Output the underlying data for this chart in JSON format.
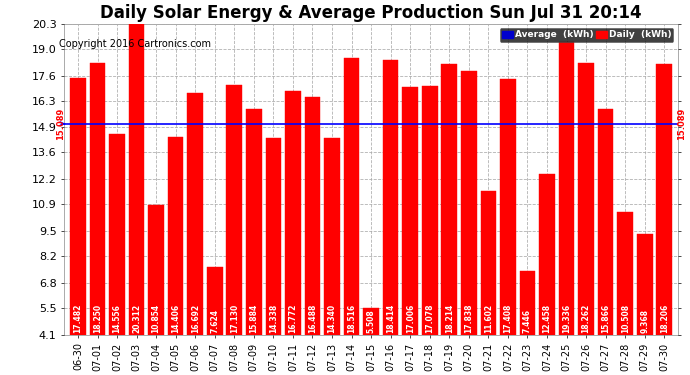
{
  "title": "Daily Solar Energy & Average Production Sun Jul 31 20:14",
  "copyright": "Copyright 2016 Cartronics.com",
  "average_label": "15.089",
  "average_value": 15.089,
  "bar_color": "#ff0000",
  "average_line_color": "#0000ff",
  "categories": [
    "06-30",
    "07-01",
    "07-02",
    "07-03",
    "07-04",
    "07-05",
    "07-06",
    "07-07",
    "07-08",
    "07-09",
    "07-10",
    "07-11",
    "07-12",
    "07-13",
    "07-14",
    "07-15",
    "07-16",
    "07-17",
    "07-18",
    "07-19",
    "07-20",
    "07-21",
    "07-22",
    "07-23",
    "07-24",
    "07-25",
    "07-26",
    "07-27",
    "07-28",
    "07-29",
    "07-30"
  ],
  "values": [
    17.482,
    18.25,
    14.556,
    20.312,
    10.854,
    14.406,
    16.692,
    7.624,
    17.13,
    15.884,
    14.338,
    16.772,
    16.488,
    14.34,
    18.516,
    5.508,
    18.414,
    17.006,
    17.078,
    18.214,
    17.838,
    11.602,
    17.408,
    7.446,
    12.458,
    19.336,
    18.262,
    15.866,
    10.508,
    9.368,
    18.206
  ],
  "ylim_min": 4.1,
  "ylim_max": 20.3,
  "yticks": [
    4.1,
    5.5,
    6.8,
    8.2,
    9.5,
    10.9,
    12.2,
    13.6,
    14.9,
    16.3,
    17.6,
    19.0,
    20.3
  ],
  "ytick_labels": [
    "4.1",
    "5.5",
    "6.8",
    "8.2",
    "9.5",
    "10.9",
    "12.2",
    "13.6",
    "14.9",
    "16.3",
    "17.6",
    "19.0",
    "20.3"
  ],
  "bg_color": "#ffffff",
  "grid_color": "#aaaaaa",
  "font_color": "#000000",
  "title_fontsize": 12,
  "bar_label_fontsize": 5.5,
  "ytick_fontsize": 8,
  "xtick_fontsize": 7,
  "copyright_fontsize": 7
}
